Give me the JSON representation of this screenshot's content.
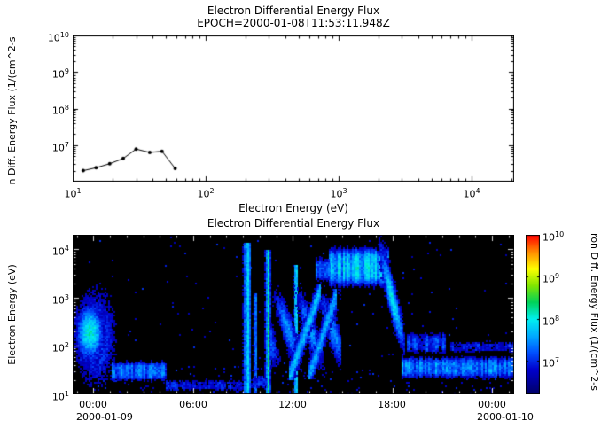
{
  "colors": {
    "background": "#ffffff",
    "text": "#000000",
    "line": "#000000",
    "spectrogram_background": "#000000"
  },
  "top_chart": {
    "title": "Electron Differential Energy Flux",
    "subtitle": "EPOCH=2000-01-08T11:53:11.948Z",
    "xlabel": "Electron Energy (eV)",
    "ylabel": "n Diff. Energy Flux (1/(cm^2-s",
    "yticks": [
      {
        "base": "10",
        "exp": "10"
      },
      {
        "base": "10",
        "exp": "9"
      },
      {
        "base": "10",
        "exp": "8"
      },
      {
        "base": "10",
        "exp": "7"
      }
    ],
    "xticks": [
      {
        "base": "10",
        "exp": "1"
      },
      {
        "base": "10",
        "exp": "2"
      },
      {
        "base": "10",
        "exp": "3"
      },
      {
        "base": "10",
        "exp": "4"
      }
    ]
  },
  "bottom_chart": {
    "title": "Electron Differential Energy Flux",
    "ylabel": "Electron Energy (eV)",
    "yticks": [
      {
        "base": "10",
        "exp": "4"
      },
      {
        "base": "10",
        "exp": "3"
      },
      {
        "base": "10",
        "exp": "2"
      },
      {
        "base": "10",
        "exp": "1"
      }
    ],
    "xticks": [
      "00:00",
      "06:00",
      "12:00",
      "18:00",
      "00:00"
    ],
    "date_left": "2000-01-09",
    "date_right": "2000-01-10",
    "colorbar_label": "ron Diff. Energy Flux (1/(cm^2-s",
    "colorbar_ticks": [
      {
        "base": "10",
        "exp": "10"
      },
      {
        "base": "10",
        "exp": "9"
      },
      {
        "base": "10",
        "exp": "8"
      },
      {
        "base": "10",
        "exp": "7"
      }
    ]
  },
  "chart_data": [
    {
      "type": "line",
      "title": "Electron Differential Energy Flux",
      "subtitle": "EPOCH=2000-01-08T11:53:11.948Z",
      "xlabel": "Electron Energy (eV)",
      "ylabel_visible": "n Diff. Energy Flux (1/(cm^2-s",
      "xscale": "log",
      "yscale": "log",
      "xlim": [
        10,
        21000
      ],
      "ylim": [
        1000000,
        10000000000
      ],
      "x": [
        12,
        15,
        19,
        24,
        30,
        38,
        47,
        59
      ],
      "y": [
        2000000,
        2400000,
        3100000,
        4300000,
        7800000,
        6300000,
        6800000,
        2300000
      ],
      "marker": "circle",
      "line_color": "#000000"
    },
    {
      "type": "heatmap",
      "title": "Electron Differential Energy Flux",
      "ylabel": "Electron Energy (eV)",
      "xtick_labels": [
        "00:00",
        "06:00",
        "12:00",
        "18:00",
        "00:00"
      ],
      "date_labels": [
        "2000-01-09",
        "2000-01-10"
      ],
      "time_range_hours": [
        -1.25,
        25.33
      ],
      "xtick_hours": [
        0,
        6,
        12,
        18,
        24
      ],
      "ylim": [
        10,
        20000
      ],
      "yscale": "log",
      "flux_log_range": [
        6.2,
        10
      ],
      "colorbar_ticks_logflux": [
        7,
        8,
        9,
        10
      ],
      "colorbar_label_visible": "ron Diff. Energy Flux (1/(cm^2-s",
      "colormap": [
        {
          "v": 6.2,
          "c": "#000064"
        },
        {
          "v": 6.8,
          "c": "#0000cd"
        },
        {
          "v": 7.2,
          "c": "#0050ff"
        },
        {
          "v": 7.6,
          "c": "#00aaff"
        },
        {
          "v": 8.0,
          "c": "#00f0f0"
        },
        {
          "v": 8.4,
          "c": "#00d25a"
        },
        {
          "v": 8.8,
          "c": "#82e600"
        },
        {
          "v": 9.2,
          "c": "#ffff00"
        },
        {
          "v": 9.6,
          "c": "#ff8c00"
        },
        {
          "v": 10.0,
          "c": "#ff0000"
        }
      ],
      "features": [
        {
          "name": "midnight-injection-halo",
          "t": [
            -1.25,
            1.4
          ],
          "logE": [
            1.1,
            3.3
          ],
          "peak": 7.4,
          "shape": "blob"
        },
        {
          "name": "midnight-injection-core",
          "t": [
            -1.25,
            0.7
          ],
          "logE": [
            1.6,
            3.0
          ],
          "peak": 8.1,
          "shape": "blob"
        },
        {
          "name": "early-low-energy-band",
          "t": [
            1.1,
            4.4
          ],
          "logE": [
            1.25,
            1.75
          ],
          "peak": 7.25,
          "shape": "band"
        },
        {
          "name": "faint-bottom-trace",
          "t": [
            4.4,
            8.9
          ],
          "logE": [
            1.05,
            1.35
          ],
          "peak": 6.85,
          "shape": "band"
        },
        {
          "name": "burst-0900",
          "t": [
            8.95,
            9.45
          ],
          "logE": [
            1.0,
            4.05
          ],
          "peak": 7.9,
          "shape": "streak"
        },
        {
          "name": "burst-0940",
          "t": [
            9.55,
            9.8
          ],
          "logE": [
            1.0,
            3.0
          ],
          "peak": 7.3,
          "shape": "streak"
        },
        {
          "name": "burst-1030",
          "t": [
            10.3,
            10.6
          ],
          "logE": [
            1.0,
            3.9
          ],
          "peak": 8.2,
          "shape": "streak"
        },
        {
          "name": "burst-1210",
          "t": [
            12.0,
            12.3
          ],
          "logE": [
            1.0,
            3.6
          ],
          "peak": 7.8,
          "shape": "streak"
        },
        {
          "name": "midday-diffuse-striated",
          "t": [
            10.7,
            14.9
          ],
          "logE": [
            1.35,
            3.35
          ],
          "peak": 7.45,
          "shape": "striated"
        },
        {
          "name": "dispersed-streak-1",
          "t": [
            11.8,
            13.6
          ],
          "logE": [
            1.4,
            3.2
          ],
          "peak": 7.7,
          "shape": "diag"
        },
        {
          "name": "dispersed-streak-2",
          "t": [
            13.0,
            14.6
          ],
          "logE": [
            1.4,
            3.1
          ],
          "peak": 7.6,
          "shape": "diag"
        },
        {
          "name": "plasma-sheet-high-energy",
          "t": [
            14.2,
            17.7
          ],
          "logE": [
            3.15,
            4.15
          ],
          "peak": 7.6,
          "shape": "band"
        },
        {
          "name": "plasma-sheet-entry",
          "t": [
            13.4,
            14.2
          ],
          "logE": [
            3.3,
            3.9
          ],
          "peak": 7.15,
          "shape": "band"
        },
        {
          "name": "evening-dispersed-structure",
          "t": [
            17.2,
            18.7
          ],
          "logE": [
            1.9,
            4.1
          ],
          "peak": 8.0,
          "shape": "drift",
          "drift": [
            4.0,
            2.0
          ]
        },
        {
          "name": "late-low-energy-band",
          "t": [
            18.6,
            25.33
          ],
          "logE": [
            1.3,
            1.85
          ],
          "peak": 7.3,
          "shape": "band"
        },
        {
          "name": "late-100ev-patch",
          "t": [
            18.9,
            21.2
          ],
          "logE": [
            1.8,
            2.35
          ],
          "peak": 7.05,
          "shape": "band"
        },
        {
          "name": "mid-bottom-trace",
          "t": [
            9.5,
            10.4
          ],
          "logE": [
            1.1,
            1.45
          ],
          "peak": 6.9,
          "shape": "band"
        },
        {
          "name": "right-edge-patch",
          "t": [
            21.5,
            25.33
          ],
          "logE": [
            1.85,
            2.15
          ],
          "peak": 6.85,
          "shape": "band"
        }
      ]
    }
  ]
}
